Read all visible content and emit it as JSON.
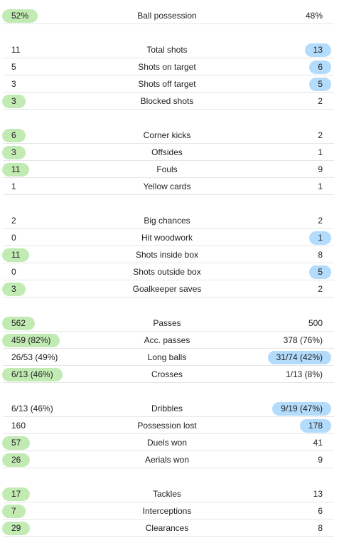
{
  "colors": {
    "home_highlight": "#c2ebb4",
    "away_highlight": "#b3dbfc",
    "separator": "#e6e6e6"
  },
  "groups": [
    [
      {
        "label": "Ball possession",
        "home": "52%",
        "away": "48%",
        "highlight": "home"
      }
    ],
    [
      {
        "label": "Total shots",
        "home": "11",
        "away": "13",
        "highlight": "away"
      },
      {
        "label": "Shots on target",
        "home": "5",
        "away": "6",
        "highlight": "away"
      },
      {
        "label": "Shots off target",
        "home": "3",
        "away": "5",
        "highlight": "away"
      },
      {
        "label": "Blocked shots",
        "home": "3",
        "away": "2",
        "highlight": "home"
      }
    ],
    [
      {
        "label": "Corner kicks",
        "home": "6",
        "away": "2",
        "highlight": "home"
      },
      {
        "label": "Offsides",
        "home": "3",
        "away": "1",
        "highlight": "home"
      },
      {
        "label": "Fouls",
        "home": "11",
        "away": "9",
        "highlight": "home"
      },
      {
        "label": "Yellow cards",
        "home": "1",
        "away": "1",
        "highlight": "none"
      }
    ],
    [
      {
        "label": "Big chances",
        "home": "2",
        "away": "2",
        "highlight": "none"
      },
      {
        "label": "Hit woodwork",
        "home": "0",
        "away": "1",
        "highlight": "away"
      },
      {
        "label": "Shots inside box",
        "home": "11",
        "away": "8",
        "highlight": "home"
      },
      {
        "label": "Shots outside box",
        "home": "0",
        "away": "5",
        "highlight": "away"
      },
      {
        "label": "Goalkeeper saves",
        "home": "3",
        "away": "2",
        "highlight": "home"
      }
    ],
    [
      {
        "label": "Passes",
        "home": "562",
        "away": "500",
        "highlight": "home"
      },
      {
        "label": "Acc. passes",
        "home": "459 (82%)",
        "away": "378 (76%)",
        "highlight": "home"
      },
      {
        "label": "Long balls",
        "home": "26/53 (49%)",
        "away": "31/74 (42%)",
        "highlight": "away"
      },
      {
        "label": "Crosses",
        "home": "6/13 (46%)",
        "away": "1/13 (8%)",
        "highlight": "home"
      }
    ],
    [
      {
        "label": "Dribbles",
        "home": "6/13 (46%)",
        "away": "9/19 (47%)",
        "highlight": "away"
      },
      {
        "label": "Possession lost",
        "home": "160",
        "away": "178",
        "highlight": "away"
      },
      {
        "label": "Duels won",
        "home": "57",
        "away": "41",
        "highlight": "home"
      },
      {
        "label": "Aerials won",
        "home": "26",
        "away": "9",
        "highlight": "home"
      }
    ],
    [
      {
        "label": "Tackles",
        "home": "17",
        "away": "13",
        "highlight": "home"
      },
      {
        "label": "Interceptions",
        "home": "7",
        "away": "6",
        "highlight": "home"
      },
      {
        "label": "Clearances",
        "home": "29",
        "away": "8",
        "highlight": "home"
      }
    ]
  ]
}
